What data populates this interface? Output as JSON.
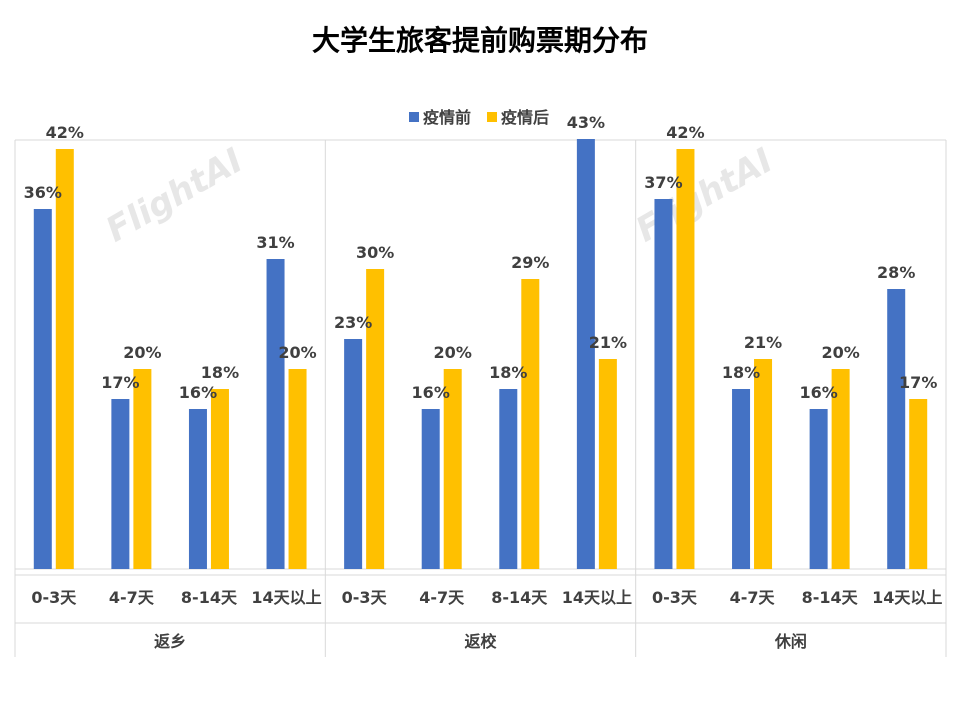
{
  "chart_data": {
    "type": "bar",
    "title": "大学生旅客提前购票期分布",
    "groups": [
      "返乡",
      "返校",
      "休闲"
    ],
    "categories": [
      "0-3天",
      "4-7天",
      "8-14天",
      "14天以上"
    ],
    "series": [
      {
        "name": "疫情前",
        "color": "#4472C4",
        "values": [
          [
            36,
            17,
            16,
            31
          ],
          [
            23,
            16,
            18,
            43
          ],
          [
            37,
            18,
            16,
            28
          ]
        ],
        "labels": [
          [
            "36%",
            "17%",
            "16%",
            "31%"
          ],
          [
            "23%",
            "16%",
            "18%",
            "43%"
          ],
          [
            "37%",
            "18%",
            "16%",
            "28%"
          ]
        ]
      },
      {
        "name": "疫情后",
        "color": "#FFC000",
        "values": [
          [
            42,
            20,
            18,
            20
          ],
          [
            30,
            20,
            29,
            21
          ],
          [
            42,
            21,
            20,
            17
          ]
        ],
        "labels": [
          [
            "42%",
            "20%",
            "18%",
            "20%"
          ],
          [
            "30%",
            "20%",
            "29%",
            "21%"
          ],
          [
            "42%",
            "21%",
            "20%",
            "17%"
          ]
        ]
      }
    ],
    "ylim": [
      0,
      48
    ],
    "legend_position": "top",
    "grid": false,
    "watermark": "FlightAI"
  }
}
